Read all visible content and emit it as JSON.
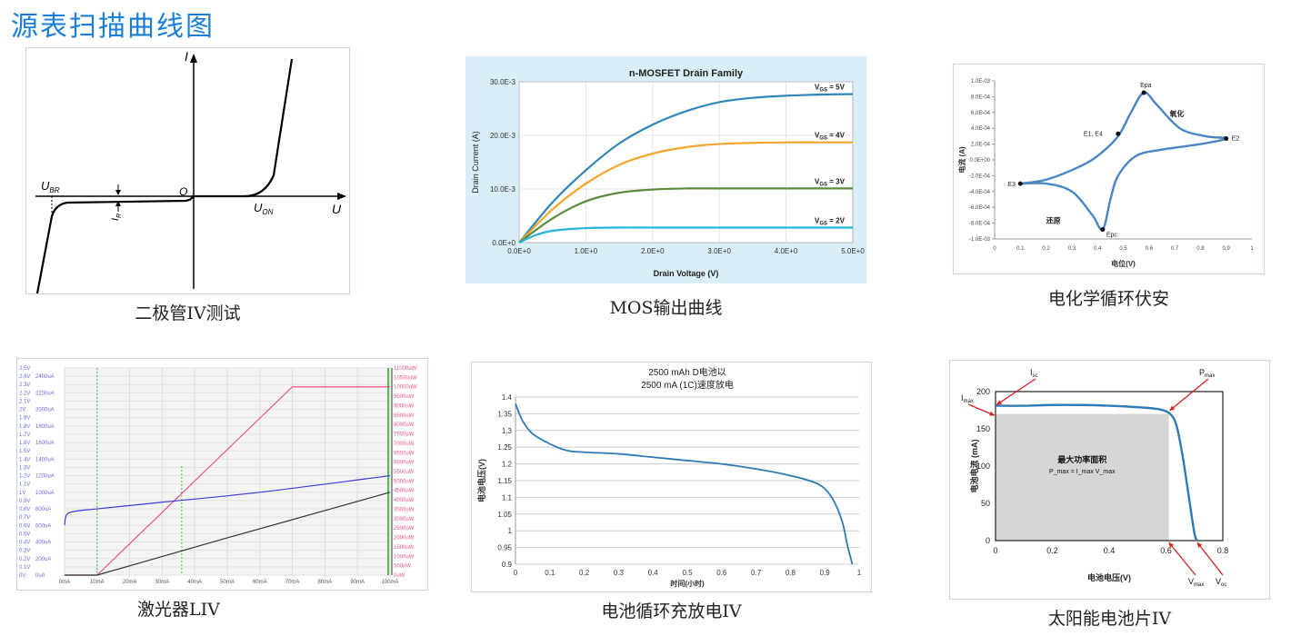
{
  "page_title": "源表扫描曲线图",
  "captions": {
    "diode": "二极管IV测试",
    "mos": "MOS输出曲线",
    "cv": "电化学循环伏安",
    "laser": "激光器LIV",
    "battery": "电池循环充放电IV",
    "solar": "太阳能电池片IV"
  },
  "chart_data": [
    {
      "type": "line",
      "id": "diode",
      "xlabel": "U",
      "ylabel": "I",
      "annotations": [
        "U_BR",
        "O",
        "U_ON",
        "I_R"
      ],
      "series": [
        {
          "name": "",
          "x": [
            -1.0,
            -0.9,
            -0.85,
            -0.8,
            0,
            0.4,
            0.55,
            0.65,
            1.0
          ],
          "y": [
            -1.0,
            -0.1,
            -0.02,
            -0.01,
            0,
            0.0,
            0.05,
            0.3,
            1.5
          ]
        }
      ]
    },
    {
      "type": "line",
      "id": "mos",
      "title": "n-MOSFET Drain Family",
      "xlabel": "Drain Voltage (V)",
      "ylabel": "Drain Current (A)",
      "xticks": [
        "0.0E+0",
        "1.0E+0",
        "2.0E+0",
        "3.0E+0",
        "4.0E+0",
        "5.0E+0"
      ],
      "yticks": [
        "0.0E+0",
        "10.0E-3",
        "20.0E-3",
        "30.0E-3"
      ],
      "xlim": [
        0,
        5
      ],
      "ylim": [
        0,
        0.03
      ],
      "colors": [
        "#2f86b8",
        "#f5a32a",
        "#5b8c3c",
        "#23b5de"
      ],
      "series": [
        {
          "name": "V_GS = 5V",
          "x": [
            0,
            0.5,
            1,
            1.5,
            2,
            2.5,
            3,
            3.5,
            4,
            4.5,
            5
          ],
          "y": [
            0,
            0.0075,
            0.0135,
            0.0185,
            0.022,
            0.0245,
            0.0262,
            0.027,
            0.0274,
            0.0276,
            0.0277
          ]
        },
        {
          "name": "V_GS = 4V",
          "x": [
            0,
            0.5,
            1,
            1.5,
            2,
            2.5,
            3,
            3.5,
            4,
            4.5,
            5
          ],
          "y": [
            0,
            0.0062,
            0.011,
            0.0145,
            0.0166,
            0.0178,
            0.0184,
            0.0186,
            0.0187,
            0.0187,
            0.0187
          ]
        },
        {
          "name": "V_GS = 3V",
          "x": [
            0,
            0.5,
            1,
            1.5,
            2,
            2.5,
            3,
            3.5,
            4,
            4.5,
            5
          ],
          "y": [
            0,
            0.0045,
            0.0077,
            0.0093,
            0.0099,
            0.0101,
            0.0101,
            0.0101,
            0.0101,
            0.0101,
            0.0101
          ]
        },
        {
          "name": "V_GS = 2V",
          "x": [
            0,
            0.25,
            0.5,
            1,
            1.5,
            2,
            3,
            4,
            5
          ],
          "y": [
            0,
            0.0014,
            0.0022,
            0.0027,
            0.0028,
            0.0028,
            0.0028,
            0.0028,
            0.0028
          ]
        }
      ]
    },
    {
      "type": "line",
      "id": "cv",
      "xlabel": "电位(V)",
      "ylabel": "电流 (A)",
      "xticks": [
        "0",
        "0.1",
        "0.2",
        "0.3",
        "0.4",
        "0.5",
        "0.6",
        "0.7",
        "0.8",
        "0.9",
        "1"
      ],
      "yticks": [
        "-1.0E-03",
        "-8.0E-04",
        "-6.0E-04",
        "-4.0E-04",
        "-2.0E-04",
        "0.0E+00",
        "2.0E-04",
        "4.0E-04",
        "6.0E-04",
        "8.0E-04",
        "1.0E-03"
      ],
      "xlim": [
        0,
        1
      ],
      "ylim": [
        -0.001,
        0.001
      ],
      "annotations": [
        "Epa",
        "氧化",
        "E1, E4",
        "E2",
        "E3",
        "还原",
        "Epc"
      ],
      "series": [
        {
          "name": "",
          "x": [
            0.1,
            0.2,
            0.32,
            0.4,
            0.48,
            0.53,
            0.58,
            0.63,
            0.72,
            0.82,
            0.9,
            0.8,
            0.65,
            0.55,
            0.48,
            0.45,
            0.42,
            0.38,
            0.3,
            0.2,
            0.1
          ],
          "y": [
            -0.0003,
            -0.00025,
            -0.0001,
            5e-05,
            0.0003,
            0.0006,
            0.00085,
            0.0007,
            0.0004,
            0.0003,
            0.00027,
            0.0002,
            0.00013,
            5e-05,
            -0.0002,
            -0.0005,
            -0.00088,
            -0.0007,
            -0.0004,
            -0.0003,
            -0.0003
          ]
        }
      ]
    },
    {
      "type": "line",
      "id": "laser",
      "xticks": [
        "0mA",
        "10mA",
        "20mA",
        "30mA",
        "40mA",
        "50mA",
        "60mA",
        "70mA",
        "80mA",
        "90mA",
        "100mA"
      ],
      "yticks_left_v": [
        "0V",
        "0.1V",
        "0.2V",
        "0.3V",
        "0.4V",
        "0.5V",
        "0.6V",
        "0.7V",
        "0.8V",
        "0.9V",
        "1V",
        "1.1V",
        "1.2V",
        "1.3V",
        "1.4V",
        "1.5V",
        "1.6V",
        "1.7V",
        "1.8V",
        "1.9V",
        "2V",
        "2.1V",
        "2.2V",
        "2.3V",
        "2.4V",
        "2.5V"
      ],
      "yticks_left_a": [
        "0uA",
        "200uA",
        "400uA",
        "600uA",
        "800uA",
        "1000uA",
        "1200uA",
        "1400uA",
        "1600uA",
        "1800uA",
        "2000uA",
        "2200uA",
        "2400uA"
      ],
      "yticks_right": [
        "0uW",
        "500uW",
        "1000uW",
        "1500uW",
        "2000uW",
        "2500uW",
        "3000uW",
        "3500uW",
        "4000uW",
        "4500uW",
        "5000uW",
        "5500uW",
        "6000uW",
        "6500uW",
        "7000uW",
        "7500uW",
        "8000uW",
        "8500uW",
        "9000uW",
        "9500uW",
        "10000uW",
        "10500uW",
        "11000uW"
      ],
      "xlim": [
        0,
        100
      ],
      "colors": [
        "#e8568a",
        "#3a3ad8",
        "#333333"
      ],
      "series": [
        {
          "name": "",
          "x": [
            0,
            10,
            70,
            100
          ],
          "y": [
            0,
            0,
            10000,
            10000
          ]
        },
        {
          "name": "",
          "x": [
            0,
            0.5,
            2,
            5,
            10,
            30,
            60,
            100
          ],
          "y": [
            0.6,
            0.72,
            0.76,
            0.78,
            0.8,
            0.88,
            1.0,
            1.2
          ]
        },
        {
          "name": "",
          "x": [
            0,
            10,
            50,
            100
          ],
          "y": [
            0,
            0,
            450,
            1000
          ]
        }
      ]
    },
    {
      "type": "line",
      "id": "battery",
      "title": "2500 mAh D电池以\n2500 mA (1C)速度放电",
      "xlabel": "时间(小时)",
      "ylabel": "电池电压(V)",
      "xticks": [
        "0",
        "0.1",
        "0.2",
        "0.3",
        "0.4",
        "0.5",
        "0.6",
        "0.7",
        "0.8",
        "0.9",
        "1"
      ],
      "yticks": [
        "0.9",
        "0.95",
        "1",
        "1.05",
        "1.1",
        "1.15",
        "1.2",
        "1.25",
        "1.3",
        "1.35",
        "1.4"
      ],
      "xlim": [
        0,
        1
      ],
      "ylim": [
        0.9,
        1.4
      ],
      "series": [
        {
          "name": "",
          "x": [
            0,
            0.02,
            0.05,
            0.1,
            0.15,
            0.2,
            0.3,
            0.4,
            0.5,
            0.6,
            0.7,
            0.8,
            0.88,
            0.92,
            0.95,
            0.965,
            0.975,
            0.98
          ],
          "y": [
            1.38,
            1.33,
            1.29,
            1.26,
            1.24,
            1.235,
            1.23,
            1.22,
            1.21,
            1.2,
            1.185,
            1.165,
            1.14,
            1.1,
            1.03,
            0.96,
            0.92,
            0.9
          ]
        }
      ]
    },
    {
      "type": "area",
      "id": "solar",
      "xlabel": "电池电压(V)",
      "ylabel": "电池电流 (mA)",
      "xticks": [
        "0",
        "0.2",
        "0.4",
        "0.6",
        "0.8"
      ],
      "yticks": [
        "0",
        "50",
        "100",
        "150",
        "200"
      ],
      "xlim": [
        0,
        0.8
      ],
      "ylim": [
        0,
        200
      ],
      "annotations": [
        "I_sc",
        "I_max",
        "P_max",
        "最大功率面积",
        "P_max = I_max V_max",
        "V_max",
        "V_oc"
      ],
      "series": [
        {
          "name": "",
          "x": [
            0,
            0.1,
            0.2,
            0.3,
            0.4,
            0.5,
            0.58,
            0.62,
            0.64,
            0.66,
            0.68,
            0.7,
            0.71
          ],
          "y": [
            181,
            181,
            182,
            182,
            181,
            179,
            176,
            168,
            150,
            110,
            60,
            10,
            0
          ]
        }
      ],
      "mpp": {
        "v": 0.61,
        "i": 170
      }
    }
  ]
}
